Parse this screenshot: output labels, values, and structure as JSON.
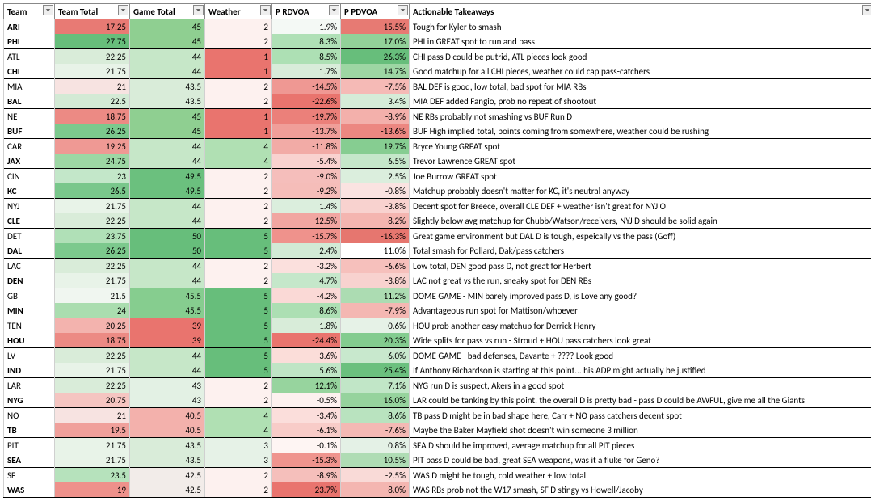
{
  "columns": [
    "Team",
    "Team Total",
    "Game Total",
    "Weather",
    "P RDVOA",
    "P PDVOA",
    "Actionable Takeaways"
  ],
  "rows": [
    {
      "team": "ARI",
      "bold": true,
      "tt": 17.25,
      "tt_c": "#e87a74",
      "gt": 45,
      "gt_c": "#8fcf91",
      "w": 2,
      "w_c": "#fdf1ef",
      "rd": "-1.9%",
      "rd_c": "#f4f9f5",
      "pd": "-15.5%",
      "pd_c": "#e77a73",
      "take": "Tough for Kyler to smash",
      "sep": true
    },
    {
      "team": "PHI",
      "bold": true,
      "tt": 27.75,
      "tt_c": "#67be7b",
      "gt": 45,
      "gt_c": "#8fcf91",
      "w": 2,
      "w_c": "#fdf1ef",
      "rd": "8.3%",
      "rd_c": "#afe0b6",
      "pd": "17.0%",
      "pd_c": "#92d199",
      "take": "PHI in GREAT spot to run and pass"
    },
    {
      "team": "ATL",
      "bold": false,
      "tt": 22.25,
      "tt_c": "#d9ecd9",
      "gt": 44,
      "gt_c": "#c6e7c8",
      "w": 1,
      "w_c": "#e9746e",
      "rd": "8.5%",
      "rd_c": "#ade0b4",
      "pd": "26.3%",
      "pd_c": "#67be7b",
      "take": "CHI pass D could be putrid, ATL pieces look good",
      "sep": true
    },
    {
      "team": "CHI",
      "bold": true,
      "tt": 21.75,
      "tt_c": "#e8f3e8",
      "gt": 44,
      "gt_c": "#c6e7c8",
      "w": 1,
      "w_c": "#e9746e",
      "rd": "1.7%",
      "rd_c": "#d8ecd9",
      "pd": "14.7%",
      "pd_c": "#9dd6a3",
      "take": "Good matchup for all CHI pieces, weather could cap pass-catchers"
    },
    {
      "team": "MIA",
      "bold": false,
      "tt": 21,
      "tt_c": "#f7e3e1",
      "gt": 43.5,
      "gt_c": "#d9ecd9",
      "w": 2,
      "w_c": "#fdf1ef",
      "rd": "-14.5%",
      "rd_c": "#ef9893",
      "pd": "-7.5%",
      "pd_c": "#f5bab6",
      "take": "BAL DEF is good, low total, bad spot for MIA RBs",
      "sep": true
    },
    {
      "team": "BAL",
      "bold": true,
      "tt": 22.5,
      "tt_c": "#d3ead5",
      "gt": 43.5,
      "gt_c": "#d9ecd9",
      "w": 2,
      "w_c": "#fdf1ef",
      "rd": "-22.6%",
      "rd_c": "#e9746e",
      "pd": "3.4%",
      "pd_c": "#d5ecd8",
      "take": "MIA DEF added Fangio, prob no repeat of shootout"
    },
    {
      "team": "NE",
      "bold": false,
      "tt": 18.75,
      "tt_c": "#ec8a84",
      "gt": 45,
      "gt_c": "#8fcf91",
      "w": 1,
      "w_c": "#e9746e",
      "rd": "-19.7%",
      "rd_c": "#eb807a",
      "pd": "-8.9%",
      "pd_c": "#f3b0ab",
      "take": "NE RBs probably not smashing vs BUF Run D",
      "sep": true
    },
    {
      "team": "BUF",
      "bold": true,
      "tt": 26.25,
      "tt_c": "#7cc98d",
      "gt": 45,
      "gt_c": "#8fcf91",
      "w": 1,
      "w_c": "#e9746e",
      "rd": "-13.7%",
      "rd_c": "#f09e99",
      "pd": "-13.6%",
      "pd_c": "#ec8781",
      "take": "BUF High implied total, points coming from somewhere, weather could be rushing"
    },
    {
      "team": "CAR",
      "bold": false,
      "tt": 19.25,
      "tt_c": "#ef9994",
      "gt": 44,
      "gt_c": "#c6e7c8",
      "w": 4,
      "w_c": "#b0e0b3",
      "rd": "-11.8%",
      "rd_c": "#f2aba6",
      "pd": "19.7%",
      "pd_c": "#86cd91",
      "take": "Bryce Young GREAT spot",
      "sep": true
    },
    {
      "team": "JAX",
      "bold": true,
      "tt": 24.75,
      "tt_c": "#9dd7a4",
      "gt": 44,
      "gt_c": "#c6e7c8",
      "w": 4,
      "w_c": "#b0e0b3",
      "rd": "-5.4%",
      "rd_c": "#f9d2cf",
      "pd": "6.5%",
      "pd_c": "#c5e7ca",
      "take": "Trevor Lawrence GREAT spot"
    },
    {
      "team": "CIN",
      "bold": false,
      "tt": 23,
      "tt_c": "#c3e7c9",
      "gt": 49.5,
      "gt_c": "#6bc07e",
      "w": 2,
      "w_c": "#fdf1ef",
      "rd": "-9.0%",
      "rd_c": "#f5bebb",
      "pd": "2.5%",
      "pd_c": "#dbeedd",
      "take": "Joe Burrow GREAT spot",
      "sep": true
    },
    {
      "team": "KC",
      "bold": true,
      "tt": 26.5,
      "tt_c": "#79c78b",
      "gt": 49.5,
      "gt_c": "#6bc07e",
      "w": 2,
      "w_c": "#fdf1ef",
      "rd": "-9.2%",
      "rd_c": "#f5bdb9",
      "pd": "-0.8%",
      "pd_c": "#fae3e1",
      "take": "Matchup probably doesn't matter for KC, it's neutral anyway"
    },
    {
      "team": "NYJ",
      "bold": false,
      "tt": 21.75,
      "tt_c": "#e8f3e8",
      "gt": 44,
      "gt_c": "#c6e7c8",
      "w": 2,
      "w_c": "#fdf1ef",
      "rd": "1.4%",
      "rd_c": "#dbeedd",
      "pd": "-3.8%",
      "pd_c": "#f8d2cf",
      "take": "Decent spot for Breece, overall CLE DEF + weather isn't great for NYJ O",
      "sep": true
    },
    {
      "team": "CLE",
      "bold": true,
      "tt": 22.25,
      "tt_c": "#d9ecd9",
      "gt": 44,
      "gt_c": "#c6e7c8",
      "w": 2,
      "w_c": "#fdf1ef",
      "rd": "-12.5%",
      "rd_c": "#f1a6a1",
      "pd": "-8.2%",
      "pd_c": "#f4b5b0",
      "take": "Slightly below avg matchup for Chubb/Watson/receivers, NYJ D should be solid again"
    },
    {
      "team": "DET",
      "bold": false,
      "tt": 23.75,
      "tt_c": "#b0e0b7",
      "gt": 50,
      "gt_c": "#67be7b",
      "w": 5,
      "w_c": "#67be7b",
      "rd": "-15.7%",
      "rd_c": "#ef928c",
      "pd": "-16.3%",
      "pd_c": "#e6766f",
      "take": "Great game environment but DAL D is tough, espeically vs the pass (Goff)",
      "sep": true
    },
    {
      "team": "DAL",
      "bold": true,
      "tt": 26.25,
      "tt_c": "#7cc98d",
      "gt": 50,
      "gt_c": "#67be7b",
      "w": 5,
      "w_c": "#67be7b",
      "rd": "2.4%",
      "rd_c": "#d2ead5",
      "pd": "11.0%",
      "pd_c": "#addb b1",
      "take": "Total smash for Pollard, Dak/pass catchers"
    },
    {
      "team": "LAC",
      "bold": false,
      "tt": 22.25,
      "tt_c": "#d9ecd9",
      "gt": 44,
      "gt_c": "#c6e7c8",
      "w": 2,
      "w_c": "#fdf1ef",
      "rd": "-3.2%",
      "rd_c": "#fbe0dd",
      "pd": "-6.6%",
      "pd_c": "#f6c0bc",
      "take": "Low total, DEN good pass D, not great for Herbert",
      "sep": true
    },
    {
      "team": "DEN",
      "bold": true,
      "tt": 21.75,
      "tt_c": "#e8f3e8",
      "gt": 44,
      "gt_c": "#c6e7c8",
      "w": 2,
      "w_c": "#fdf1ef",
      "rd": "4.7%",
      "rd_c": "#c5e7ca",
      "pd": "-3.8%",
      "pd_c": "#f8d2cf",
      "take": "LAC not great vs the run, sneaky spot for DEN RBs"
    },
    {
      "team": "GB",
      "bold": false,
      "tt": 21.5,
      "tt_c": "#f0f6f0",
      "gt": 45.5,
      "gt_c": "#86cd8f",
      "w": 5,
      "w_c": "#67be7b",
      "rd": "-4.2%",
      "rd_c": "#fad9d6",
      "pd": "11.2%",
      "pd_c": "#acdcb2",
      "take": "DOME GAME - MIN barely improved pass D, is Love any good?",
      "sep": true
    },
    {
      "team": "MIN",
      "bold": true,
      "tt": 24,
      "tt_c": "#aaddaf",
      "gt": 45.5,
      "gt_c": "#86cd8f",
      "w": 5,
      "w_c": "#67be7b",
      "rd": "8.6%",
      "rd_c": "#acdfb3",
      "pd": "-7.9%",
      "pd_c": "#f4b7b2",
      "take": "Advantageous run spot for Mattison/whoever"
    },
    {
      "team": "TEN",
      "bold": false,
      "tt": 20.25,
      "tt_c": "#f3b3ae",
      "gt": 39,
      "gt_c": "#e9746e",
      "w": 5,
      "w_c": "#67be7b",
      "rd": "1.8%",
      "rd_c": "#d8ecd9",
      "pd": "0.6%",
      "pd_c": "#e6f2e7",
      "take": "HOU prob another easy matchup for Derrick Henry",
      "sep": true
    },
    {
      "team": "HOU",
      "bold": true,
      "tt": 18.75,
      "tt_c": "#ec8a84",
      "gt": 39,
      "gt_c": "#e9746e",
      "w": 5,
      "w_c": "#67be7b",
      "rd": "-24.4%",
      "rd_c": "#e9746e",
      "pd": "20.3%",
      "pd_c": "#83cc8f",
      "take": "Wide splits for pass vs run - Stroud + HOU pass catchers look great"
    },
    {
      "team": "LV",
      "bold": false,
      "tt": 22.25,
      "tt_c": "#d9ecd9",
      "gt": 44,
      "gt_c": "#c6e7c8",
      "w": 5,
      "w_c": "#67be7b",
      "rd": "-3.6%",
      "rd_c": "#fbddd9",
      "pd": "6.0%",
      "pd_c": "#c8e8cd",
      "take": "DOME GAME - bad defenses, Davante + ???? Look good",
      "sep": true
    },
    {
      "team": "IND",
      "bold": true,
      "tt": 21.75,
      "tt_c": "#e8f3e8",
      "gt": 44,
      "gt_c": "#c6e7c8",
      "w": 5,
      "w_c": "#67be7b",
      "rd": "5.6%",
      "rd_c": "#bfe5c5",
      "pd": "25.4%",
      "pd_c": "#6bc07e",
      "take": "If Anthony Richardson is starting at this point... his ADP might actually be justified"
    },
    {
      "team": "LAR",
      "bold": false,
      "tt": 22.25,
      "tt_c": "#d9ecd9",
      "gt": 43,
      "gt_c": "#e3f1e4",
      "w": 2,
      "w_c": "#fdf1ef",
      "rd": "12.1%",
      "rd_c": "#97d49e",
      "pd": "7.1%",
      "pd_c": "#c1e6c7",
      "take": "NYG run D is suspect, Akers in a good spot",
      "sep": true
    },
    {
      "team": "NYG",
      "bold": true,
      "tt": 20.75,
      "tt_c": "#f5c5c1",
      "gt": 43,
      "gt_c": "#e3f1e4",
      "w": 2,
      "w_c": "#fdf1ef",
      "rd": "-0.5%",
      "rd_c": "#fdf1ef",
      "pd": "16.0%",
      "pd_c": "#96d39d",
      "take": "LAR could be tanking by this point, the overall D is pretty bad - pass D could be AWFUL, give me all the Giants"
    },
    {
      "team": "NO",
      "bold": false,
      "tt": 21,
      "tt_c": "#f7e3e1",
      "gt": 40.5,
      "gt_c": "#f3b1ac",
      "w": 4,
      "w_c": "#b0e0b3",
      "rd": "-3.4%",
      "rd_c": "#fbdedb",
      "pd": "8.6%",
      "pd_c": "#b9e3bf",
      "take": "TB pass D might be in bad shape here, Carr + NO pass catchers decent spot",
      "sep": true
    },
    {
      "team": "TB",
      "bold": true,
      "tt": 19.5,
      "tt_c": "#f0a09b",
      "gt": 40.5,
      "gt_c": "#f3b1ac",
      "w": 4,
      "w_c": "#b0e0b3",
      "rd": "-6.1%",
      "rd_c": "#f8ccc8",
      "pd": "-7.6%",
      "pd_c": "#f4b9b4",
      "take": "Maybe the Baker Mayfield shot doesn't win someone 3 million"
    },
    {
      "team": "PIT",
      "bold": false,
      "tt": 21.75,
      "tt_c": "#e8f3e8",
      "gt": 43.5,
      "gt_c": "#d9ecd9",
      "w": 3,
      "w_c": "#e6f2e7",
      "rd": "-0.1%",
      "rd_c": "#fef5f3",
      "pd": "0.8%",
      "pd_c": "#e4f1e6",
      "take": "SEA D should be improved, average matchup for all PIT pieces",
      "sep": true
    },
    {
      "team": "SEA",
      "bold": true,
      "tt": 21.75,
      "tt_c": "#e8f3e8",
      "gt": 43.5,
      "gt_c": "#d9ecd9",
      "w": 3,
      "w_c": "#e6f2e7",
      "rd": "-15.3%",
      "rd_c": "#ef948e",
      "pd": "10.5%",
      "pd_c": "#afdcb4",
      "take": "PIT pass D could be bad, great SEA weapons, was it a fluke for Geno?"
    },
    {
      "team": "SF",
      "bold": false,
      "tt": 23.5,
      "tt_c": "#b6e2bc",
      "gt": 42.5,
      "gt_c": "#f2ece9",
      "w": 2,
      "w_c": "#fdf1ef",
      "rd": "-8.9%",
      "rd_c": "#f5bfbb",
      "pd": "-2.5%",
      "pd_c": "#f9dad7",
      "take": "WAS D might be tough, cold weather + low total",
      "sep": true
    },
    {
      "team": "WAS",
      "bold": true,
      "tt": 19,
      "tt_c": "#ee918b",
      "gt": 42.5,
      "gt_c": "#f2ece9",
      "w": 2,
      "w_c": "#fdf1ef",
      "rd": "-23.7%",
      "rd_c": "#e9746e",
      "pd": "-8.0%",
      "pd_c": "#f4b6b1",
      "take": "WAS RBs prob not the W17 smash, SF D stingy vs Howell/Jacoby",
      "last": true
    }
  ]
}
